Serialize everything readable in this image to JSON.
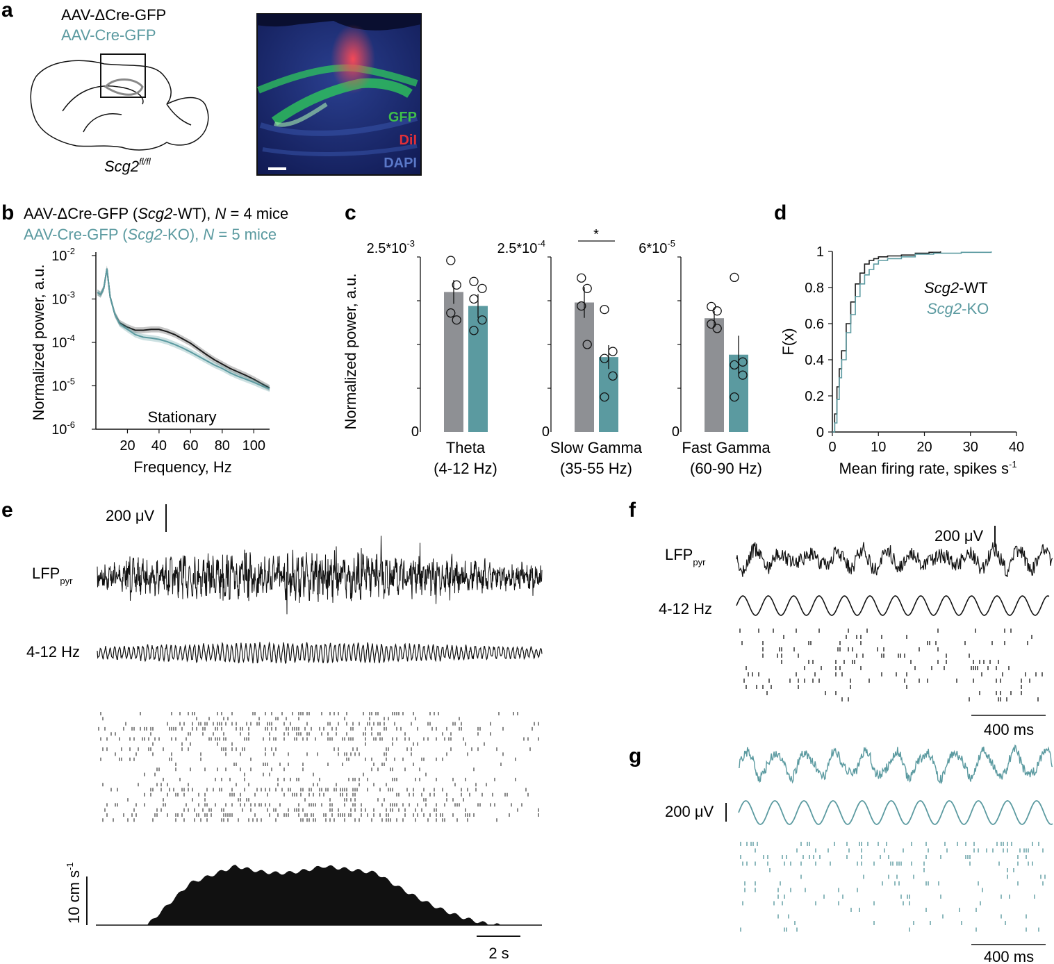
{
  "colors": {
    "wt": "#1a1a1a",
    "ko": "#5b9aa0",
    "bar_wt": "#8e9094",
    "bar_ko": "#5b9aa0"
  },
  "panels": {
    "a": "a",
    "b": "b",
    "c": "c",
    "d": "d",
    "e": "e",
    "f": "f",
    "g": "g"
  },
  "panel_a": {
    "legend_wt": "AAV-ΔCre-GFP",
    "legend_ko": "AAV-Cre-GFP",
    "mouse_label": "Scg2",
    "mouse_sup": "fl/fl",
    "stain_gfp": "GFP",
    "stain_dii": "DiI",
    "stain_dapi": "DAPI",
    "stain_colors": {
      "gfp": "#3fbf4a",
      "dii": "#e0303a",
      "dapi": "#5a78c8"
    }
  },
  "panel_b": {
    "legend_wt": {
      "pre": "AAV-ΔCre-GFP (",
      "gene": "Scg2",
      "post": "-WT), ",
      "n": "N",
      "count": " = 4 mice"
    },
    "legend_ko": {
      "pre": "AAV-Cre-GFP (",
      "gene": "Scg2",
      "post": "-KO), ",
      "n": "N",
      "count": " = 5 mice"
    },
    "state_label": "Stationary"
  },
  "panel_c": {
    "significance": "*"
  },
  "panel_d": {
    "legend_wt_gene": "Scg2",
    "legend_wt_suffix": "-WT",
    "legend_ko_gene": "Scg2",
    "legend_ko_suffix": "-KO"
  },
  "panel_e": {
    "lfp": "LFP",
    "lfp_sub": "pyr",
    "theta": "4-12 Hz",
    "scale_uv": "200 μV",
    "speed_scale": "10 cm s",
    "speed_sup": "-1",
    "time_scale": "2 s"
  },
  "panel_f": {
    "lfp": "LFP",
    "lfp_sub": "pyr",
    "theta": "4-12 Hz",
    "scale_uv": "200 μV",
    "time_scale": "400 ms"
  },
  "panel_g": {
    "scale_uv": "200 μV",
    "time_scale": "400 ms"
  },
  "chart_data": [
    {
      "id": "b",
      "type": "line",
      "title": "",
      "xlabel": "Frequency, Hz",
      "ylabel": "Normalized power, a.u.",
      "xlim": [
        0,
        110
      ],
      "ylim_log10": [
        -6,
        -2
      ],
      "xticks": [
        20,
        40,
        60,
        80,
        100
      ],
      "yticks": [
        {
          "base": "10",
          "exp": "-2"
        },
        {
          "base": "10",
          "exp": "-3"
        },
        {
          "base": "10",
          "exp": "-4"
        },
        {
          "base": "10",
          "exp": "-5"
        },
        {
          "base": "10",
          "exp": "-6"
        }
      ],
      "x": [
        1,
        3,
        5,
        7,
        9,
        12,
        15,
        20,
        25,
        30,
        35,
        40,
        45,
        50,
        55,
        60,
        65,
        70,
        75,
        80,
        85,
        90,
        95,
        100,
        105,
        110
      ],
      "series": [
        {
          "name": "Scg2-WT",
          "log10_values": [
            -2.85,
            -2.9,
            -2.75,
            -2.3,
            -2.95,
            -3.35,
            -3.55,
            -3.65,
            -3.72,
            -3.72,
            -3.7,
            -3.7,
            -3.75,
            -3.82,
            -3.92,
            -4.02,
            -4.15,
            -4.28,
            -4.4,
            -4.5,
            -4.6,
            -4.68,
            -4.76,
            -4.85,
            -4.95,
            -5.05
          ]
        },
        {
          "name": "Scg2-KO",
          "log10_values": [
            -2.85,
            -2.9,
            -2.75,
            -2.3,
            -2.95,
            -3.35,
            -3.57,
            -3.7,
            -3.82,
            -3.88,
            -3.9,
            -3.93,
            -3.98,
            -4.05,
            -4.13,
            -4.22,
            -4.32,
            -4.42,
            -4.52,
            -4.6,
            -4.7,
            -4.78,
            -4.85,
            -4.92,
            -5.0,
            -5.07
          ]
        }
      ]
    },
    {
      "id": "c",
      "type": "bar",
      "ylabel": "Normalized power, a.u.",
      "groups": [
        {
          "label": "Theta",
          "sublabel": "(4-12 Hz)",
          "ymax_label": "2.5*10",
          "ymax_exp": "-3",
          "ymax": 2.5,
          "zero_label": "0",
          "wt_mean": 2.0,
          "wt_sem": 0.17,
          "ko_mean": 1.8,
          "ko_sem": 0.17,
          "wt_points": [
            2.45,
            2.1,
            1.7,
            1.6
          ],
          "ko_points": [
            2.15,
            2.05,
            1.9,
            1.6,
            1.45
          ]
        },
        {
          "label": "Slow Gamma",
          "sublabel": "(35-55 Hz)",
          "ymax_label": "2.5*10",
          "ymax_exp": "-4",
          "ymax": 2.5,
          "zero_label": "0",
          "wt_mean": 1.85,
          "wt_sem": 0.22,
          "ko_mean": 1.07,
          "ko_sem": 0.17,
          "wt_points": [
            2.2,
            2.05,
            1.8,
            1.25
          ],
          "ko_points": [
            1.75,
            1.15,
            1.05,
            0.8,
            0.5
          ]
        },
        {
          "label": "Fast Gamma",
          "sublabel": "(60-90 Hz)",
          "ymax_label": "6*10",
          "ymax_exp": "-5",
          "ymax": 6,
          "zero_label": "0",
          "wt_mean": 3.9,
          "wt_sem": 0.25,
          "ko_mean": 2.65,
          "ko_sem": 0.65,
          "wt_points": [
            4.3,
            4.15,
            3.7,
            3.55
          ],
          "ko_points": [
            5.3,
            2.4,
            2.3,
            1.95,
            1.2
          ]
        }
      ]
    },
    {
      "id": "d",
      "type": "line",
      "xlabel": "Mean firing rate, spikes s",
      "xlabel_sup": "-1",
      "ylabel": "F(x)",
      "xlim": [
        0,
        40
      ],
      "ylim": [
        0,
        1
      ],
      "xticks": [
        "0",
        "10",
        "20",
        "30",
        "40"
      ],
      "yticks": [
        "0",
        "0.2",
        "0.4",
        "0.6",
        "0.8",
        "1"
      ],
      "series": [
        {
          "name": "Scg2-WT",
          "x": [
            0,
            0.5,
            1,
            1.5,
            2,
            3,
            4,
            5,
            6,
            7,
            8,
            9,
            10,
            12,
            15,
            18,
            21,
            23.5
          ],
          "y": [
            0,
            0.1,
            0.25,
            0.35,
            0.45,
            0.6,
            0.72,
            0.82,
            0.88,
            0.93,
            0.95,
            0.96,
            0.97,
            0.975,
            0.98,
            0.99,
            0.995,
            1.0
          ]
        },
        {
          "name": "Scg2-KO",
          "x": [
            0,
            0.5,
            1,
            1.5,
            2,
            3,
            4,
            5,
            6,
            7,
            8,
            9,
            10,
            12,
            15,
            18,
            22,
            28,
            34.5
          ],
          "y": [
            0,
            0.05,
            0.18,
            0.3,
            0.4,
            0.55,
            0.65,
            0.75,
            0.82,
            0.87,
            0.9,
            0.93,
            0.95,
            0.96,
            0.97,
            0.985,
            0.99,
            0.995,
            1.0
          ]
        }
      ]
    }
  ]
}
